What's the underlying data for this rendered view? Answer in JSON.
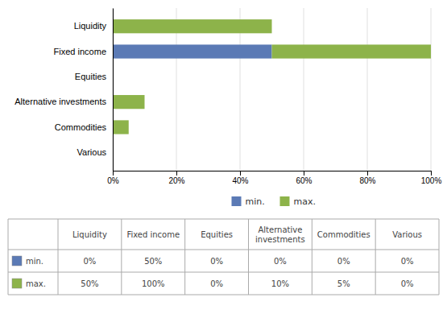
{
  "chart_data": {
    "type": "bar",
    "orientation": "horizontal",
    "stacked": true,
    "grid": true,
    "legend": "bottom",
    "categories": [
      "Various",
      "Commodities",
      "Alternative investments",
      "Equities",
      "Fixed income",
      "Liquidity"
    ],
    "series": [
      {
        "name": "min.",
        "color": "#5b7ab5",
        "values": [
          0,
          0,
          0,
          0,
          50,
          0
        ]
      },
      {
        "name": "max.",
        "color": "#8db34a",
        "values": [
          0,
          5,
          10,
          0,
          50,
          50
        ]
      }
    ],
    "xlim": [
      0,
      100
    ],
    "xticks": [
      {
        "value": 0,
        "label": "0%"
      },
      {
        "value": 20,
        "label": "20%"
      },
      {
        "value": 40,
        "label": "40%"
      },
      {
        "value": 60,
        "label": "60%"
      },
      {
        "value": 80,
        "label": "80%"
      },
      {
        "value": 100,
        "label": "100%"
      }
    ],
    "table": {
      "columns": [
        "Liquidity",
        "Fixed income",
        "Equities",
        "Alternative\ninvestments",
        "Commodities",
        "Various"
      ],
      "rows": [
        {
          "name": "min.",
          "cells": [
            "0%",
            "50%",
            "0%",
            "0%",
            "0%",
            "0%"
          ]
        },
        {
          "name": "max.",
          "cells": [
            "50%",
            "100%",
            "0%",
            "10%",
            "5%",
            "0%"
          ]
        }
      ]
    }
  }
}
